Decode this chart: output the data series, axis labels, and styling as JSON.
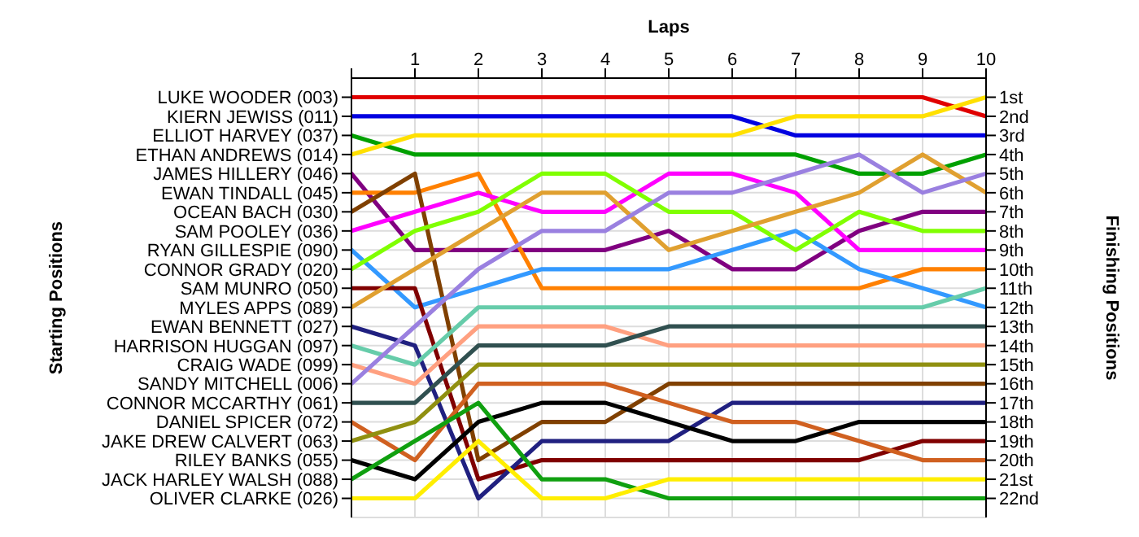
{
  "chart_data": {
    "type": "line",
    "xlabel": "Laps",
    "y2label": "Finishing Positions",
    "x": [
      0,
      1,
      2,
      3,
      4,
      5,
      6,
      7,
      8,
      9,
      10
    ],
    "xlim": [
      0,
      10
    ],
    "xticks": [
      {
        "value": 0,
        "label": null
      },
      1,
      2,
      3,
      4,
      5,
      6,
      7,
      8,
      9,
      10
    ],
    "y2lim": [
      23,
      0
    ],
    "y2ticks": [
      {
        "value": 1,
        "label": "1st"
      },
      {
        "value": 2,
        "label": "2nd"
      },
      {
        "value": 3,
        "label": "3rd"
      },
      {
        "value": 4,
        "label": "4th"
      },
      {
        "value": 5,
        "label": "5th"
      },
      {
        "value": 6,
        "label": "6th"
      },
      {
        "value": 7,
        "label": "7th"
      },
      {
        "value": 8,
        "label": "8th"
      },
      {
        "value": 9,
        "label": "9th"
      },
      {
        "value": 10,
        "label": "10th"
      },
      {
        "value": 11,
        "label": "11th"
      },
      {
        "value": 12,
        "label": "12th"
      },
      {
        "value": 13,
        "label": "13th"
      },
      {
        "value": 14,
        "label": "14th"
      },
      {
        "value": 15,
        "label": "15th"
      },
      {
        "value": 16,
        "label": "16th"
      },
      {
        "value": 17,
        "label": "17th"
      },
      {
        "value": 18,
        "label": "18th"
      },
      {
        "value": 19,
        "label": "19th"
      },
      {
        "value": 20,
        "label": "20th"
      },
      {
        "value": 21,
        "label": "21st"
      },
      {
        "value": 22,
        "label": "22nd"
      }
    ],
    "annotations": [
      "LUKE WOODER (003)",
      "KIERN JEWISS (011)",
      "ELLIOT HARVEY (037)",
      "ETHAN ANDREWS (014)",
      "JAMES HILLERY (046)",
      "EWAN TINDALL (045)",
      "OCEAN BACH (030)",
      "SAM POOLEY (036)",
      "RYAN GILLESPIE (090)",
      "CONNOR GRADY (020)",
      "SAM MUNRO (050)",
      "MYLES APPS (089)",
      "EWAN BENNETT (027)",
      "HARRISON HUGGAN (097)",
      "CRAIG WADE (099)",
      "SANDY MITCHELL (006)",
      "CONNOR MCCARTHY (061)",
      "DANIEL SPICER (072)",
      "JAKE DREW CALVERT (063)",
      "RILEY BANKS (055)",
      "JACK HARLEY WALSH (088)",
      "OLIVER CLARKE (026)",
      "Starting Positions"
    ],
    "grid": true,
    "marker": "none",
    "line_style": "solid",
    "series": [
      {
        "axis": "y2",
        "color": "#e00000",
        "values": [
          1,
          1,
          1,
          1,
          1,
          1,
          1,
          1,
          1,
          1,
          2
        ]
      },
      {
        "axis": "y2",
        "color": "#0000e0",
        "values": [
          2,
          2,
          2,
          2,
          2,
          2,
          2,
          3,
          3,
          3,
          3
        ]
      },
      {
        "axis": "y2",
        "color": "#00a000",
        "values": [
          3,
          4,
          4,
          4,
          4,
          4,
          4,
          4,
          5,
          5,
          4
        ]
      },
      {
        "axis": "y2",
        "color": "#ffe000",
        "values": [
          4,
          3,
          3,
          3,
          3,
          3,
          3,
          2,
          2,
          2,
          1
        ]
      },
      {
        "axis": "y2",
        "color": "#800080",
        "values": [
          5,
          9,
          9,
          9,
          9,
          8,
          10,
          10,
          8,
          7,
          7
        ]
      },
      {
        "axis": "y2",
        "color": "#ff8000",
        "values": [
          6,
          6,
          5,
          11,
          11,
          11,
          11,
          11,
          11,
          10,
          10
        ]
      },
      {
        "axis": "y2",
        "color": "#804000",
        "values": [
          7,
          5,
          20,
          18,
          18,
          16,
          16,
          16,
          16,
          16,
          16
        ]
      },
      {
        "axis": "y2",
        "color": "#ff00ff",
        "values": [
          8,
          7,
          6,
          7,
          7,
          5,
          5,
          6,
          9,
          9,
          9
        ]
      },
      {
        "axis": "y2",
        "color": "#3399ff",
        "values": [
          9,
          12,
          11,
          10,
          10,
          10,
          9,
          8,
          10,
          11,
          12
        ]
      },
      {
        "axis": "y2",
        "color": "#80ff00",
        "values": [
          10,
          8,
          7,
          5,
          5,
          7,
          7,
          9,
          7,
          8,
          8
        ]
      },
      {
        "axis": "y2",
        "color": "#800000",
        "values": [
          11,
          11,
          21,
          20,
          20,
          20,
          20,
          20,
          20,
          19,
          19
        ]
      },
      {
        "axis": "y2",
        "color": "#e0a030",
        "values": [
          12,
          10,
          8,
          6,
          6,
          9,
          8,
          7,
          6,
          4,
          6
        ]
      },
      {
        "axis": "y2",
        "color": "#202080",
        "values": [
          13,
          14,
          22,
          19,
          19,
          19,
          17,
          17,
          17,
          17,
          17
        ]
      },
      {
        "axis": "y2",
        "color": "#66ccaa",
        "values": [
          14,
          15,
          12,
          12,
          12,
          12,
          12,
          12,
          12,
          12,
          11
        ]
      },
      {
        "axis": "y2",
        "color": "#ffa080",
        "values": [
          15,
          16,
          13,
          13,
          13,
          14,
          14,
          14,
          14,
          14,
          14
        ]
      },
      {
        "axis": "y2",
        "color": "#9a80e0",
        "values": [
          16,
          13,
          10,
          8,
          8,
          6,
          6,
          5,
          4,
          6,
          5
        ]
      },
      {
        "axis": "y2",
        "color": "#305050",
        "values": [
          17,
          17,
          14,
          14,
          14,
          13,
          13,
          13,
          13,
          13,
          13
        ]
      },
      {
        "axis": "y2",
        "color": "#d06020",
        "values": [
          18,
          20,
          16,
          16,
          16,
          17,
          18,
          18,
          19,
          20,
          20
        ]
      },
      {
        "axis": "y2",
        "color": "#909010",
        "values": [
          19,
          18,
          15,
          15,
          15,
          15,
          15,
          15,
          15,
          15,
          15
        ]
      },
      {
        "axis": "y2",
        "color": "#000000",
        "values": [
          20,
          21,
          18,
          17,
          17,
          18,
          19,
          19,
          18,
          18,
          18
        ]
      },
      {
        "axis": "y2",
        "color": "#10a010",
        "values": [
          21,
          19,
          17,
          21,
          21,
          22,
          22,
          22,
          22,
          22,
          22
        ]
      },
      {
        "axis": "y2",
        "color": "#ffee00",
        "values": [
          22,
          22,
          19,
          22,
          22,
          21,
          21,
          21,
          21,
          21,
          21
        ]
      }
    ]
  }
}
